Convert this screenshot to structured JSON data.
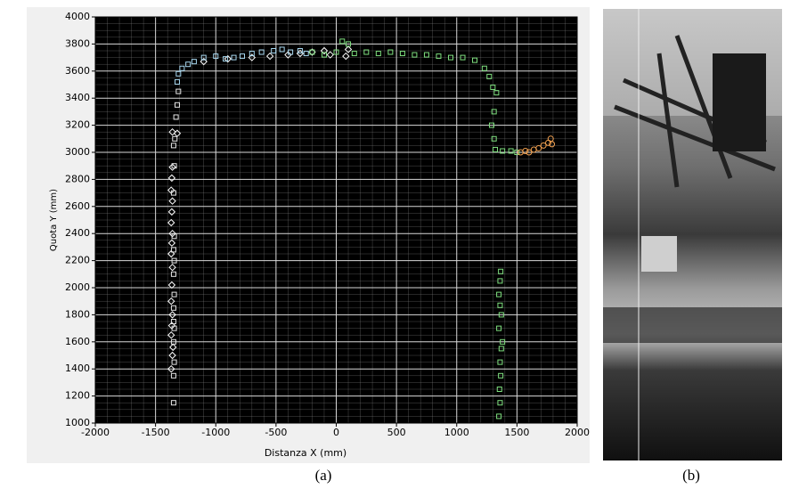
{
  "chart_data": {
    "type": "scatter",
    "xlabel": "Distanza X (mm)",
    "ylabel": "Quota Y (mm)",
    "xlim": [
      -2000,
      2000
    ],
    "ylim": [
      1000,
      4000
    ],
    "xticks": [
      -2000,
      -1500,
      -1000,
      -500,
      0,
      500,
      1000,
      1500,
      2000
    ],
    "yticks": [
      1000,
      1200,
      1400,
      1600,
      1800,
      2000,
      2200,
      2400,
      2600,
      2800,
      3000,
      3200,
      3400,
      3600,
      3800,
      4000
    ],
    "grid": true,
    "minor_grid": {
      "x": 5,
      "y": 4
    },
    "background": "#000000",
    "grid_color": "#8a8a8a",
    "series": [
      {
        "color": "#ffffff",
        "marker": "diamond",
        "x": [
          -1370,
          -1360,
          -1355,
          -1370,
          -1365,
          -1360,
          -1370,
          -1365,
          -1360,
          -1370,
          -1365,
          -1360,
          -1370,
          -1365,
          -1360,
          -1370,
          -1365,
          -1360,
          -1320,
          -1360,
          -1100,
          -900,
          -700,
          -550,
          -400,
          -300,
          -200,
          -100,
          -50,
          80,
          100
        ],
        "y": [
          1400,
          1500,
          1560,
          1650,
          1720,
          1800,
          1900,
          2020,
          2150,
          2250,
          2330,
          2400,
          2480,
          2560,
          2640,
          2720,
          2810,
          2890,
          3140,
          3150,
          3670,
          3690,
          3700,
          3710,
          3720,
          3730,
          3740,
          3750,
          3720,
          3710,
          3760
        ]
      },
      {
        "color": "#e8e8e8",
        "marker": "square",
        "x": [
          -1350,
          -1350,
          -1345,
          -1350,
          -1345,
          -1350,
          -1350,
          -1345,
          -1350,
          -1345,
          -1350,
          -1345,
          -1350,
          -1345,
          -1350,
          -1340,
          -1330,
          -1320,
          -1310
        ],
        "y": [
          1150,
          1350,
          1450,
          1600,
          1700,
          1750,
          1850,
          1950,
          2100,
          2200,
          2280,
          2380,
          2700,
          2900,
          3050,
          3100,
          3260,
          3350,
          3450
        ]
      },
      {
        "color": "#a8d8f0",
        "marker": "square",
        "x": [
          -1320,
          -1310,
          -1280,
          -1230,
          -1180,
          -1100,
          -1000,
          -920,
          -850,
          -780,
          -700,
          -620,
          -520,
          -450,
          -380,
          -300,
          -250
        ],
        "y": [
          3520,
          3580,
          3620,
          3650,
          3670,
          3700,
          3710,
          3690,
          3700,
          3710,
          3730,
          3740,
          3750,
          3760,
          3740,
          3750,
          3730
        ]
      },
      {
        "color": "#7fe07f",
        "marker": "square",
        "x": [
          -200,
          -100,
          0,
          50,
          100,
          150,
          250,
          350,
          450,
          550,
          650,
          750,
          850,
          950,
          1050,
          1150,
          1230,
          1270,
          1300,
          1330,
          1310,
          1290,
          1310,
          1320,
          1380,
          1450,
          1500,
          1350,
          1360,
          1355,
          1365,
          1360,
          1370,
          1380,
          1350,
          1370,
          1360,
          1350,
          1360,
          1365
        ],
        "y": [
          3740,
          3720,
          3740,
          3820,
          3800,
          3730,
          3740,
          3730,
          3740,
          3730,
          3720,
          3720,
          3710,
          3700,
          3700,
          3680,
          3620,
          3560,
          3480,
          3440,
          3300,
          3200,
          3100,
          3020,
          3010,
          3010,
          3000,
          1050,
          1150,
          1250,
          1350,
          1450,
          1550,
          1600,
          1700,
          1800,
          1870,
          1950,
          2050,
          2120
        ]
      },
      {
        "color": "#f0a050",
        "marker": "circle",
        "x": [
          1530,
          1570,
          1600,
          1640,
          1680,
          1720,
          1760,
          1780,
          1790
        ],
        "y": [
          3000,
          3010,
          3000,
          3020,
          3030,
          3050,
          3070,
          3100,
          3060
        ]
      }
    ]
  },
  "captions": [
    "(a)",
    "(b)"
  ]
}
